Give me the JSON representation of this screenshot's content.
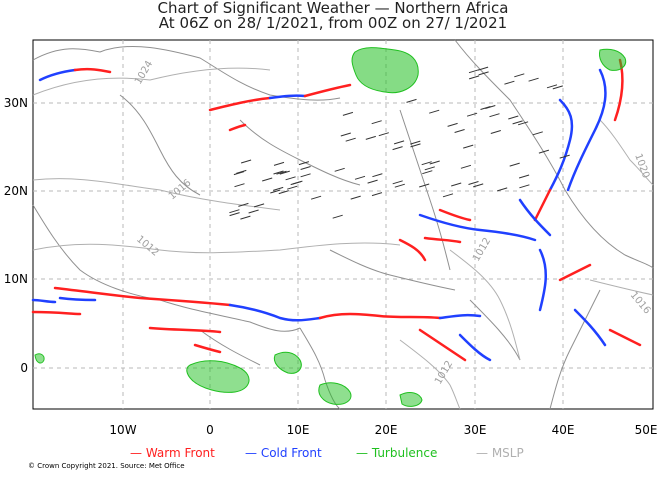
{
  "title_line1": "Chart of Significant Weather — Northern Africa",
  "title_line2": "At 06Z on 28/ 1/2021, from 00Z on 27/ 1/2021",
  "lat_labels": [
    "30N",
    "20N",
    "10N",
    "0"
  ],
  "lon_labels": [
    "10W",
    "0",
    "10E",
    "20E",
    "30E",
    "40E",
    "50E"
  ],
  "legend": {
    "warm": "— Warm Front",
    "cold": "— Cold Front",
    "turb": "— Turbulence",
    "mslp": "— MSLP"
  },
  "colors": {
    "warm": "#ff2020",
    "cold": "#2040ff",
    "turb": "#20c020",
    "mslp": "#b0b0b0",
    "grid": "#b8b8b8"
  },
  "isobar_labels": [
    "1024",
    "1016",
    "1012",
    "1012",
    "1016",
    "1020",
    "1012"
  ],
  "copyright": "© Crown Copyright 2021. Source: Met Office"
}
